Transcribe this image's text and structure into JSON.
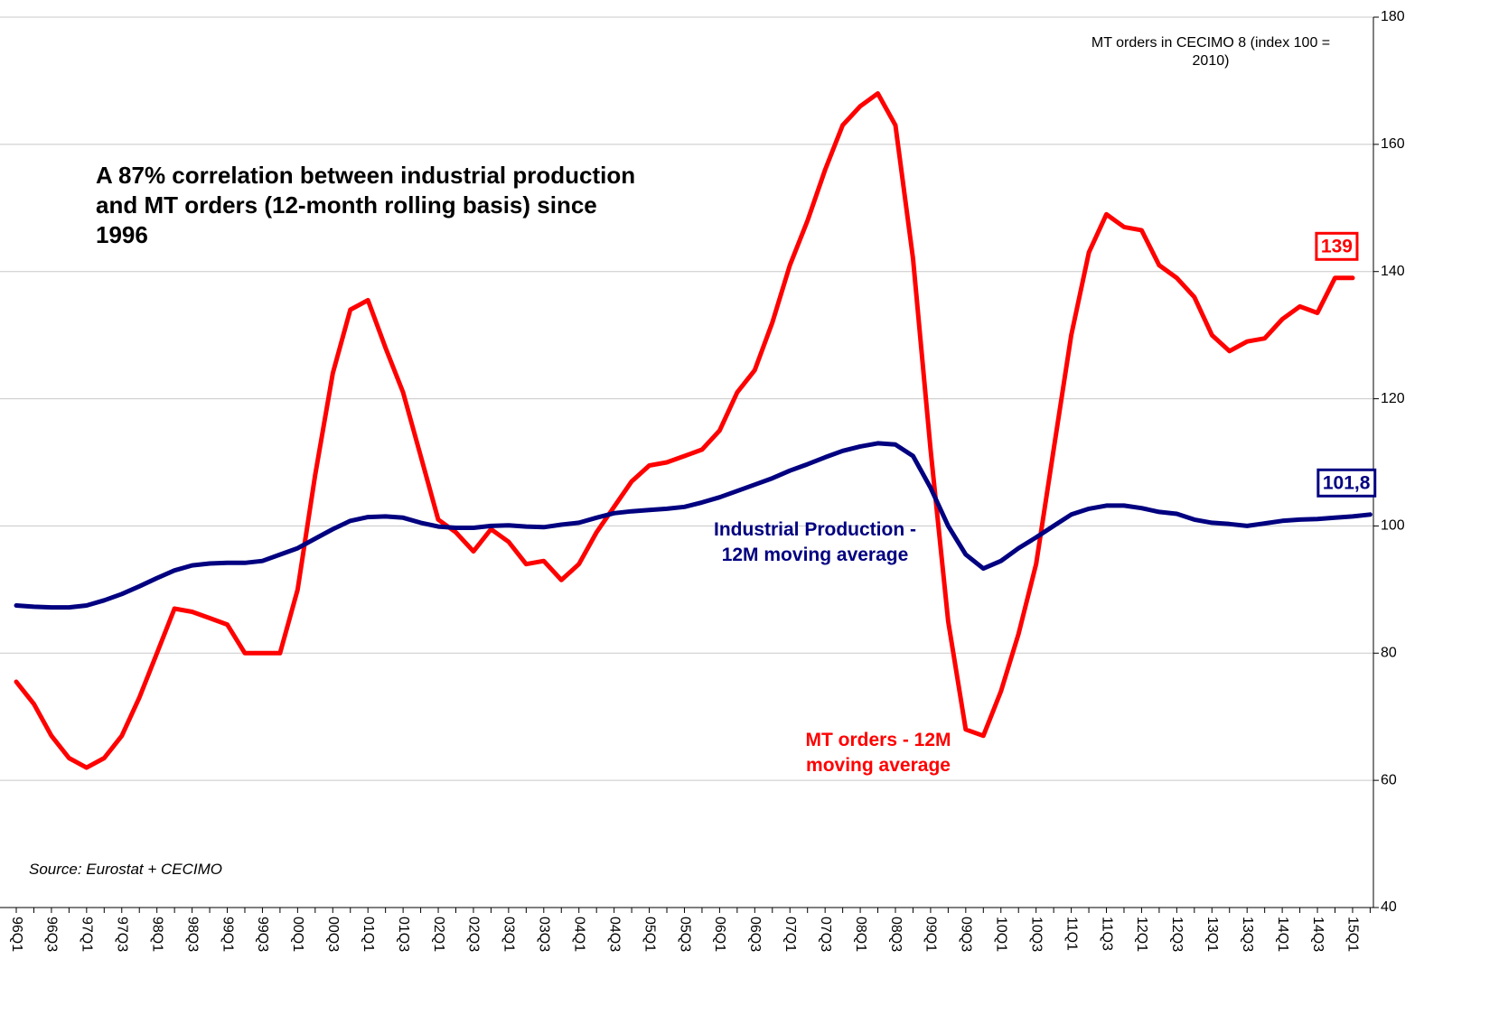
{
  "chart_data": {
    "type": "line",
    "title": "A 87% correlation between industrial production and MT orders (12-month rolling basis) since 1996",
    "y_axis_label": "MT orders in CECIMO 8 (index 100 = 2010)",
    "source": "Source: Eurostat + CECIMO",
    "categories": [
      "96Q1",
      null,
      "96Q3",
      null,
      "97Q1",
      null,
      "97Q3",
      null,
      "98Q1",
      null,
      "98Q3",
      null,
      "99Q1",
      null,
      "99Q3",
      null,
      "00Q1",
      null,
      "00Q3",
      null,
      "01Q1",
      null,
      "01Q3",
      null,
      "02Q1",
      null,
      "02Q3",
      null,
      "03Q1",
      null,
      "03Q3",
      null,
      "04Q1",
      null,
      "04Q3",
      null,
      "05Q1",
      null,
      "05Q3",
      null,
      "06Q1",
      null,
      "06Q3",
      null,
      "07Q1",
      null,
      "07Q3",
      null,
      "08Q1",
      null,
      "08Q3",
      null,
      "09Q1",
      null,
      "09Q3",
      null,
      "10Q1",
      null,
      "10Q3",
      null,
      "11Q1",
      null,
      "11Q3",
      null,
      "12Q1",
      null,
      "12Q3",
      null,
      "13Q1",
      null,
      "13Q3",
      null,
      "14Q1",
      null,
      "14Q3",
      null,
      "15Q1",
      null
    ],
    "series": [
      {
        "name": "MT orders - 12M moving average",
        "color": "#ff0000",
        "end_label": "139",
        "values": [
          75.5,
          72,
          67,
          63.5,
          62,
          63.5,
          67,
          73,
          80,
          87,
          86.5,
          85.5,
          84.5,
          80,
          80,
          80,
          90,
          108,
          124,
          134,
          135.5,
          128,
          121,
          111,
          101,
          99,
          96,
          99.5,
          97.5,
          94,
          94.5,
          91.5,
          94,
          99,
          103,
          107,
          109.5,
          110,
          111,
          112,
          115,
          121,
          124.5,
          132,
          141,
          148,
          156,
          163,
          166,
          168,
          163,
          142,
          112,
          85,
          68,
          67,
          74,
          83,
          94,
          112,
          130,
          143,
          149,
          147,
          146.5,
          141,
          139,
          136,
          130,
          127.5,
          129,
          129.5,
          132.5,
          134.5,
          133.5,
          139,
          139,
          null
        ]
      },
      {
        "name": "Industrial Production - 12M moving average",
        "color": "#000080",
        "end_label": "101,8",
        "values": [
          87.5,
          87.3,
          87.2,
          87.2,
          87.5,
          88.3,
          89.3,
          90.5,
          91.8,
          93,
          93.8,
          94.1,
          94.2,
          94.2,
          94.5,
          95.5,
          96.5,
          98,
          99.5,
          100.8,
          101.4,
          101.5,
          101.3,
          100.5,
          99.9,
          99.7,
          99.7,
          100,
          100.1,
          99.9,
          99.8,
          100.2,
          100.5,
          101.3,
          102,
          102.3,
          102.5,
          102.7,
          103,
          103.7,
          104.5,
          105.5,
          106.5,
          107.5,
          108.7,
          109.7,
          110.8,
          111.8,
          112.5,
          113,
          112.8,
          111,
          106,
          100,
          95.5,
          93.3,
          94.5,
          96.5,
          98.2,
          100,
          101.8,
          102.7,
          103.2,
          103.2,
          102.8,
          102.2,
          101.9,
          101,
          100.5,
          100.3,
          100,
          100.4,
          100.8,
          101,
          101.1,
          101.3,
          101.5,
          101.8
        ]
      }
    ],
    "ylim": [
      40,
      180
    ],
    "yticks": [
      40,
      60,
      80,
      100,
      120,
      140,
      160,
      180
    ],
    "grid": true
  }
}
